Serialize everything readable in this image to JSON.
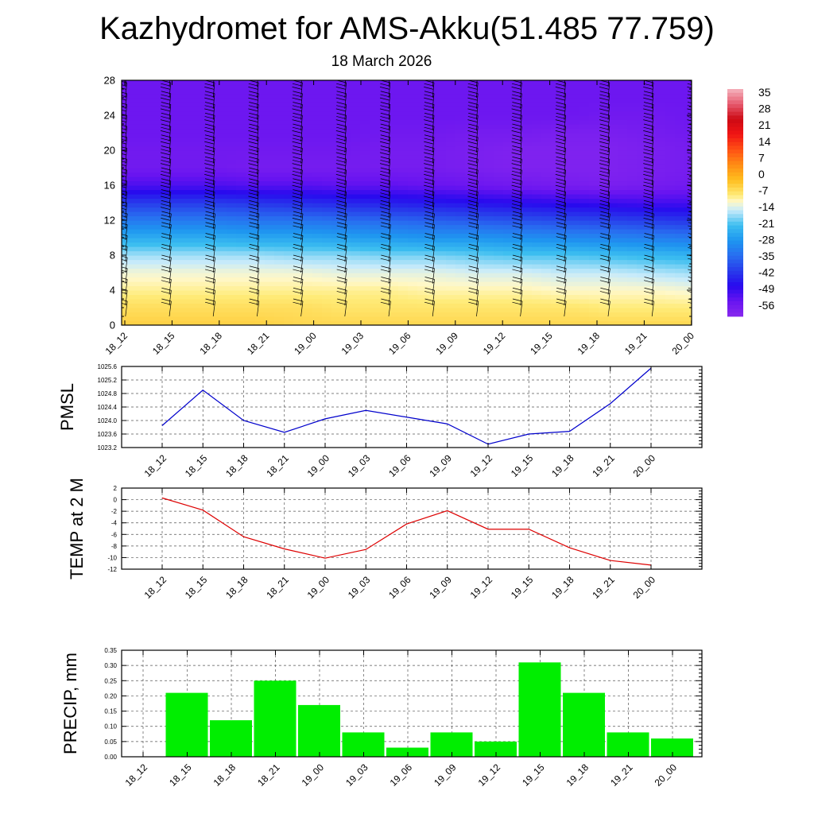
{
  "page": {
    "title": "Kazhydromet for AMS-Akku(51.485 77.759)",
    "subtitle": "18 March 2026"
  },
  "chart_data": [
    {
      "id": "cross-section",
      "type": "heatmap",
      "title": "",
      "time_labels": [
        "18_12",
        "18_15",
        "18_18",
        "18_21",
        "19_00",
        "19_03",
        "19_06",
        "19_09",
        "19_12",
        "19_15",
        "19_18",
        "19_21",
        "20_00"
      ],
      "y_ticks": [
        0,
        4,
        8,
        12,
        16,
        20,
        24,
        28
      ],
      "ylim": [
        0,
        28
      ],
      "temperature_field": {
        "levels": [
          0,
          2,
          4,
          6,
          8,
          10,
          12,
          14,
          16,
          18,
          20,
          22,
          24,
          26,
          28
        ],
        "columns": [
          [
            -3,
            -5,
            -8,
            -11,
            -16,
            -24,
            -33,
            -42,
            -53,
            -58,
            -58,
            -57,
            -57,
            -57,
            -57
          ],
          [
            -3,
            -5,
            -8,
            -11,
            -16,
            -24,
            -33,
            -42,
            -53,
            -58,
            -58,
            -57,
            -57,
            -57,
            -57
          ],
          [
            -3,
            -5,
            -8,
            -11,
            -16,
            -25,
            -34,
            -43,
            -54,
            -59,
            -58,
            -57,
            -57,
            -57,
            -57
          ],
          [
            -4,
            -5,
            -8,
            -11,
            -17,
            -25,
            -34,
            -44,
            -54,
            -59,
            -58,
            -57,
            -57,
            -57,
            -57
          ],
          [
            -4,
            -6,
            -8,
            -12,
            -17,
            -26,
            -35,
            -45,
            -55,
            -59,
            -58,
            -57,
            -57,
            -57,
            -57
          ],
          [
            -4,
            -6,
            -8,
            -12,
            -18,
            -27,
            -36,
            -46,
            -55,
            -59,
            -59,
            -58,
            -57,
            -57,
            -57
          ],
          [
            -4,
            -6,
            -9,
            -12,
            -18,
            -28,
            -37,
            -47,
            -56,
            -59,
            -59,
            -58,
            -57,
            -57,
            -57
          ],
          [
            -4,
            -6,
            -9,
            -13,
            -19,
            -28,
            -38,
            -48,
            -57,
            -60,
            -60,
            -59,
            -57,
            -57,
            -57
          ],
          [
            -4,
            -6,
            -9,
            -13,
            -20,
            -29,
            -39,
            -49,
            -58,
            -61,
            -61,
            -59,
            -57,
            -57,
            -57
          ],
          [
            -4,
            -6,
            -10,
            -14,
            -20,
            -30,
            -40,
            -50,
            -59,
            -61,
            -61,
            -60,
            -57,
            -57,
            -57
          ],
          [
            -4,
            -7,
            -10,
            -14,
            -21,
            -31,
            -41,
            -51,
            -60,
            -61,
            -61,
            -60,
            -58,
            -57,
            -57
          ],
          [
            -4,
            -7,
            -10,
            -15,
            -22,
            -32,
            -42,
            -52,
            -59,
            -60,
            -60,
            -59,
            -58,
            -57,
            -57
          ],
          [
            -4,
            -7,
            -11,
            -16,
            -23,
            -33,
            -43,
            -52,
            -58,
            -59,
            -59,
            -58,
            -57,
            -57,
            -57
          ]
        ]
      },
      "colorbar": {
        "labels": [
          "35",
          "28",
          "21",
          "14",
          "7",
          "0",
          "-7",
          "-14",
          "-21",
          "-28",
          "-35",
          "-42",
          "-49",
          "-56"
        ],
        "min": -63,
        "max": 42
      }
    },
    {
      "id": "pmsl",
      "type": "line",
      "ylabel": "PMSL",
      "categories": [
        "18_12",
        "18_15",
        "18_18",
        "18_21",
        "19_00",
        "19_03",
        "19_06",
        "19_09",
        "19_12",
        "19_15",
        "19_18",
        "19_21",
        "20_00"
      ],
      "series": [
        {
          "name": "PMSL",
          "color": "#0000cc",
          "values": [
            1023.85,
            1024.9,
            1024.0,
            1023.65,
            1024.05,
            1024.3,
            1024.1,
            1023.9,
            1023.3,
            1023.6,
            1023.68,
            1024.5,
            1025.55
          ]
        }
      ],
      "yticks": [
        "1025.6",
        "1025.2",
        "1024.8",
        "1024.4",
        "1024.0",
        "1023.6",
        "1023.2"
      ],
      "ylim": [
        1023.2,
        1025.6
      ]
    },
    {
      "id": "temp2m",
      "type": "line",
      "ylabel": "TEMP at 2 M",
      "categories": [
        "18_12",
        "18_15",
        "18_18",
        "18_21",
        "19_00",
        "19_03",
        "19_06",
        "19_09",
        "19_12",
        "19_15",
        "19_18",
        "19_21",
        "20_00"
      ],
      "series": [
        {
          "name": "T2M",
          "color": "#dd0000",
          "values": [
            0.3,
            -1.8,
            -6.4,
            -8.5,
            -10.1,
            -8.6,
            -4.2,
            -1.9,
            -5.1,
            -5.1,
            -8.3,
            -10.5,
            -11.3
          ]
        }
      ],
      "yticks": [
        "2",
        "0",
        "-2",
        "-4",
        "-6",
        "-8",
        "-10",
        "-12"
      ],
      "ylim": [
        -12,
        2
      ]
    },
    {
      "id": "precip",
      "type": "bar",
      "ylabel": "PRECIP, mm",
      "categories": [
        "18_12",
        "18_15",
        "18_18",
        "18_21",
        "19_00",
        "19_03",
        "19_06",
        "19_09",
        "19_12",
        "19_15",
        "19_18",
        "19_21",
        "20_00"
      ],
      "values": [
        0.0,
        0.21,
        0.12,
        0.25,
        0.17,
        0.08,
        0.03,
        0.08,
        0.05,
        0.31,
        0.21,
        0.08,
        0.06
      ],
      "bar_color": "#00ee00",
      "yticks": [
        "0.35",
        "0.30",
        "0.25",
        "0.20",
        "0.15",
        "0.10",
        "0.05",
        "0.00"
      ],
      "ylim": [
        0,
        0.35
      ]
    }
  ]
}
